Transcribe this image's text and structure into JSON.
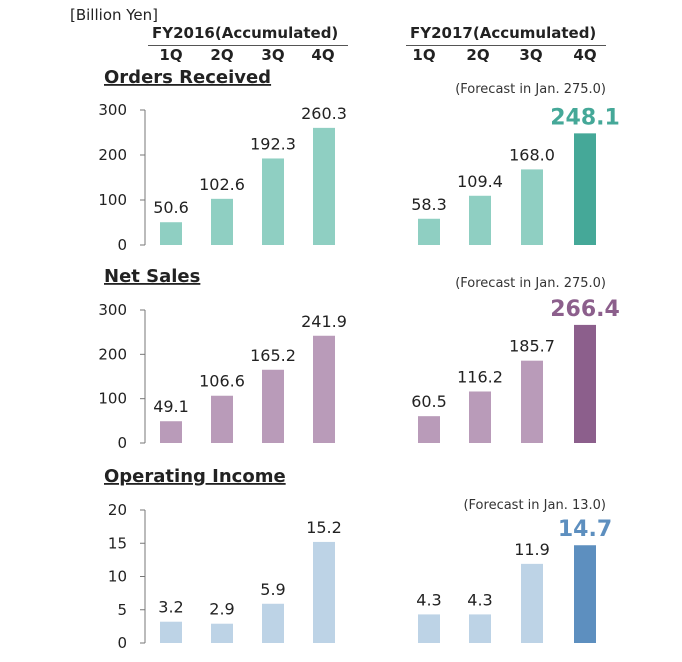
{
  "unit_label": "[Billion Yen]",
  "fiscal_years": [
    {
      "label": "FY2016(Accumulated)",
      "quarters": [
        "1Q",
        "2Q",
        "3Q",
        "4Q"
      ]
    },
    {
      "label": "FY2017(Accumulated)",
      "quarters": [
        "1Q",
        "2Q",
        "3Q",
        "4Q"
      ]
    }
  ],
  "chart_data": [
    {
      "type": "bar",
      "title": "Orders Received",
      "forecast_note": "(Forecast in Jan. 275.0)",
      "categories": [
        "FY2016 1Q",
        "FY2016 2Q",
        "FY2016 3Q",
        "FY2016 4Q",
        "FY2017 1Q",
        "FY2017 2Q",
        "FY2017 3Q",
        "FY2017 4Q"
      ],
      "values": [
        50.6,
        102.6,
        192.3,
        260.3,
        58.3,
        109.4,
        168.0,
        248.1
      ],
      "value_labels": [
        "50.6",
        "102.6",
        "192.3",
        "260.3",
        "58.3",
        "109.4",
        "168.0",
        "248.1"
      ],
      "ylim": [
        0,
        300
      ],
      "yticks": [
        "0",
        "100",
        "200",
        "300"
      ],
      "colors": {
        "bar": "#8fcfc2",
        "highlight": "#45a898",
        "highlight_text": "#45a898"
      }
    },
    {
      "type": "bar",
      "title": "Net Sales",
      "forecast_note": "(Forecast in Jan. 275.0)",
      "categories": [
        "FY2016 1Q",
        "FY2016 2Q",
        "FY2016 3Q",
        "FY2016 4Q",
        "FY2017 1Q",
        "FY2017 2Q",
        "FY2017 3Q",
        "FY2017 4Q"
      ],
      "values": [
        49.1,
        106.6,
        165.2,
        241.9,
        60.5,
        116.2,
        185.7,
        266.4
      ],
      "value_labels": [
        "49.1",
        "106.6",
        "165.2",
        "241.9",
        "60.5",
        "116.2",
        "185.7",
        "266.4"
      ],
      "ylim": [
        0,
        300
      ],
      "yticks": [
        "0",
        "100",
        "200",
        "300"
      ],
      "colors": {
        "bar": "#b99bb9",
        "highlight": "#8c5f8c",
        "highlight_text": "#8c5f8c"
      }
    },
    {
      "type": "bar",
      "title": "Operating Income",
      "forecast_note": "(Forecast in Jan. 13.0)",
      "categories": [
        "FY2016 1Q",
        "FY2016 2Q",
        "FY2016 3Q",
        "FY2016 4Q",
        "FY2017 1Q",
        "FY2017 2Q",
        "FY2017 3Q",
        "FY2017 4Q"
      ],
      "values": [
        3.2,
        2.9,
        5.9,
        15.2,
        4.3,
        4.3,
        11.9,
        14.7
      ],
      "value_labels": [
        "3.2",
        "2.9",
        "5.9",
        "15.2",
        "4.3",
        "4.3",
        "11.9",
        "14.7"
      ],
      "ylim": [
        0,
        20
      ],
      "yticks": [
        "0",
        "5",
        "10",
        "15",
        "20"
      ],
      "colors": {
        "bar": "#bdd3e6",
        "highlight": "#5d8fbf",
        "highlight_text": "#5d8fbf"
      }
    }
  ]
}
